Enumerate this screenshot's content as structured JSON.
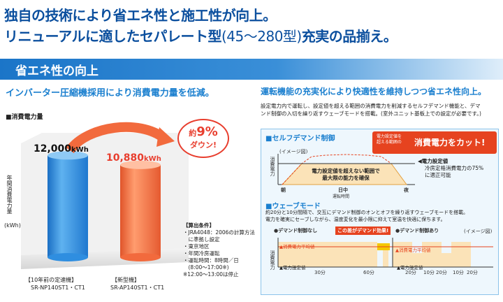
{
  "headline": {
    "line1": "独自の技術により省エネ性と施工性が向上。",
    "line2_a": "リニューアルに適したセパレート型",
    "line2_b": "(45〜280型)",
    "line2_c": "充実の品揃え。"
  },
  "band_title": "省エネ性の向上",
  "left": {
    "subtitle": "インバーター圧縮機採用により消費電力量を低減。",
    "chart_label": "■消費電力量",
    "yaxis_label": "年間消費電力量",
    "yaxis_unit": "(kWh)",
    "badge_line1": "約",
    "badge_pct": "9%",
    "badge_line2": "ダウン!",
    "conditions_title": "【算出条件】",
    "conditions": [
      "・JRA4048：2006の計算方法",
      "　に準拠し設定",
      "・東京地区",
      "・年間冷房運転",
      "・運転時間：8時間／日",
      "　(8:00〜17:00※)",
      "※12:00〜13:00は停止"
    ]
  },
  "chart_data": {
    "type": "bar",
    "title": "消費電力量",
    "ylabel": "年間消費電力量(kWh)",
    "categories": [
      "【10年前の定速機】SR-NP140ST1・CT1",
      "【新型機】SR-AP140ST1・CT1"
    ],
    "values": [
      12000,
      10880
    ],
    "value_labels": [
      "12,000",
      "10,880"
    ],
    "unit": "kWh",
    "cat_line1": [
      "【10年前の定速機】",
      "【新型機】"
    ],
    "cat_line2": [
      "SR-NP140ST1・CT1",
      "SR-AP140ST1・CT1"
    ],
    "colors": [
      "#2f8ee0",
      "#f26a3d"
    ],
    "value_colors": [
      "#111111",
      "#e83e2e"
    ],
    "ylim": [
      0,
      14000
    ]
  },
  "right": {
    "subtitle": "運転機能の充実化により快適性を維持しつつ省エネ性向上。",
    "desc1": "設定電力内で運転し、設定値を超える範囲の消費電力を削減するセルフデマンド機能と、デマ",
    "desc2": "ンド制御の入切を繰り返すウェーブモードを搭載。(室外ユニット基板上での設定が必要です。)",
    "self_demand": {
      "title": "■セルフデマンド制御",
      "image_note": "(イメージ図)",
      "callout_small1": "電力設定値を",
      "callout_small2": "超える範囲の",
      "callout_big": "消費電力をカット!",
      "yaxis": "消費電力",
      "inner_line1": "電力設定値を超えない範囲で",
      "inner_line2": "最大限の能力を確保",
      "x_labels": [
        "朝",
        "日中",
        "夜"
      ],
      "x_sub": "運転時間",
      "setpoint_label": "◀電力設定値",
      "setpoint_desc1": "冷房定格消費電力の75%",
      "setpoint_desc2": "に適正可能"
    },
    "wave": {
      "title": "■ウェーブモード",
      "desc1": "約20分と10分間隔で、交互にデマンド制御のオンとオフを繰り返すウェーブモードを搭載。",
      "desc2": "電力を確実にセーブしながら、温度変化を最小限に抑えて室温を快適に保ちます。",
      "label_off": "●デマンド制御なし",
      "label_on": "●デマンド制御あり",
      "effect": "この差がデマンド効果!",
      "image_note": "(イメージ図)",
      "yaxis": "消費電力",
      "avg_label": "▲消費電力平均値",
      "set_label": "▲電力設定値",
      "xticks_left": [
        "30分",
        "60分"
      ],
      "xticks_right": [
        "20分",
        "10分",
        "20分",
        "10分",
        "20分"
      ]
    }
  }
}
